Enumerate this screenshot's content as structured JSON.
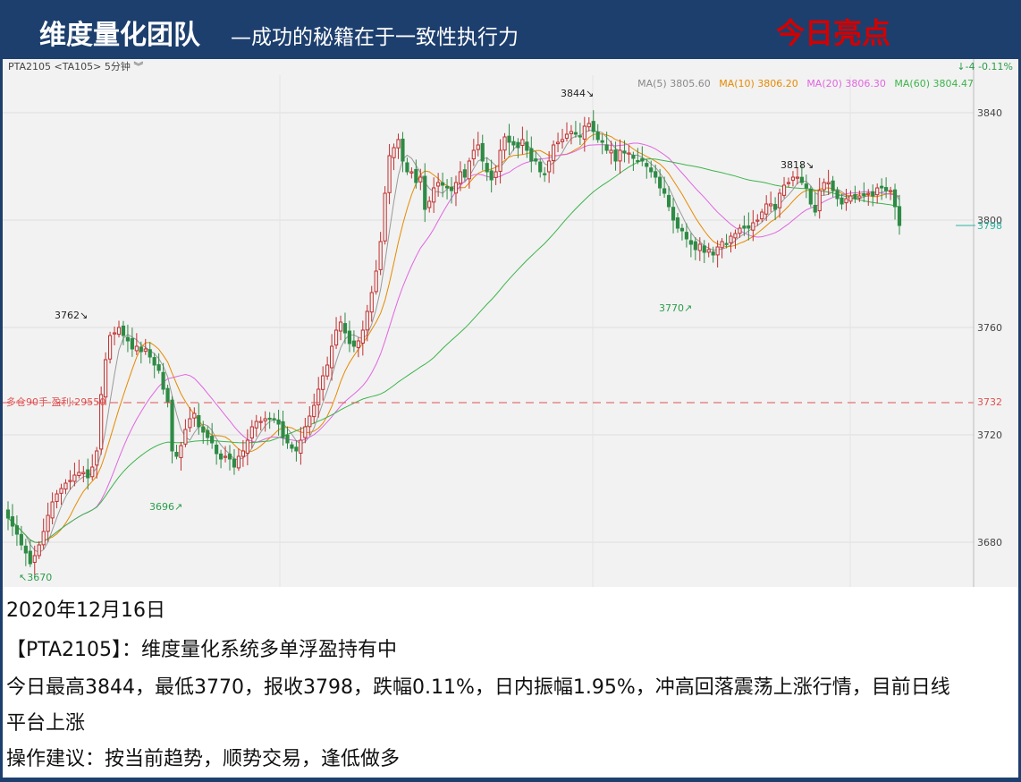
{
  "header": {
    "brand": "维度量化团队",
    "slogan": "—成功的秘籍在于一致性执行力",
    "highlight": "今日亮点"
  },
  "chart_header": {
    "symbol": "PTA2105 <TA105> 5分钟 ︾",
    "change": "↓-4 -0.11%",
    "ma_labels": [
      {
        "text": "MA(5) 3805.60",
        "color": "#888888"
      },
      {
        "text": "MA(10) 3806.20",
        "color": "#e68a00"
      },
      {
        "text": "MA(20) 3806.30",
        "color": "#e066e0"
      },
      {
        "text": "MA(60) 3804.47",
        "color": "#3cb44b"
      }
    ]
  },
  "annotations": {
    "high_3844": "3844↘",
    "peak_3762": "3762↘",
    "peak_3818": "3818↘",
    "low_3770": "3770↗",
    "low_3696": "3696↗",
    "low_3670": "↖3670",
    "position": "多仓90手 盈利:29550"
  },
  "price_tags": {
    "last": "3798",
    "position": "3732"
  },
  "info": {
    "date": "2020年12月16日",
    "status": "【PTA2105】：维度量化系统多单浮盈持有中",
    "summary_line1": "今日最高3844，最低3770，报收3798，跌幅0.11%，日内振幅1.95%，冲高回落震荡上涨行情，目前日线",
    "summary_line2": "平台上涨",
    "advice": "操作建议：按当前趋势，顺势交易，逢低做多"
  },
  "chart_data": {
    "type": "candlestick",
    "symbol": "PTA2105",
    "interval": "5分钟",
    "yaxis_ticks": [
      3680,
      3720,
      3760,
      3800,
      3840
    ],
    "ylim": [
      3668,
      3850
    ],
    "grid": true,
    "position_line": {
      "price": 3732,
      "label": "多仓90手 盈利:29550"
    },
    "last_price": 3798,
    "high": 3844,
    "low": 3770,
    "ma_legend": {
      "MA5": 3805.6,
      "MA10": 3806.2,
      "MA20": 3806.3,
      "MA60": 3804.47
    },
    "closes": [
      3689,
      3686,
      3683,
      3679,
      3676,
      3672,
      3675,
      3679,
      3684,
      3690,
      3695,
      3698,
      3700,
      3702,
      3703,
      3705,
      3706,
      3706,
      3704,
      3708,
      3714,
      3735,
      3748,
      3757,
      3758,
      3760,
      3757,
      3755,
      3752,
      3753,
      3751,
      3752,
      3749,
      3746,
      3744,
      3737,
      3732,
      3714,
      3712,
      3716,
      3722,
      3726,
      3728,
      3723,
      3721,
      3719,
      3717,
      3713,
      3711,
      3712,
      3711,
      3708,
      3712,
      3714,
      3718,
      3723,
      3725,
      3725,
      3726,
      3726,
      3726,
      3724,
      3719,
      3717,
      3715,
      3714,
      3718,
      3723,
      3727,
      3731,
      3737,
      3742,
      3746,
      3753,
      3759,
      3762,
      3758,
      3754,
      3753,
      3755,
      3759,
      3766,
      3773,
      3781,
      3792,
      3810,
      3824,
      3827,
      3830,
      3822,
      3818,
      3818,
      3814,
      3816,
      3804,
      3807,
      3812,
      3814,
      3813,
      3812,
      3811,
      3814,
      3818,
      3816,
      3822,
      3826,
      3828,
      3822,
      3818,
      3815,
      3818,
      3826,
      3831,
      3829,
      3828,
      3827,
      3830,
      3826,
      3822,
      3822,
      3818,
      3817,
      3822,
      3828,
      3829,
      3830,
      3832,
      3833,
      3832,
      3831,
      3835,
      3836,
      3833,
      3830,
      3829,
      3826,
      3826,
      3822,
      3826,
      3825,
      3825,
      3823,
      3822,
      3822,
      3820,
      3818,
      3816,
      3812,
      3810,
      3805,
      3800,
      3797,
      3796,
      3793,
      3791,
      3789,
      3791,
      3788,
      3789,
      3787,
      3790,
      3792,
      3791,
      3794,
      3795,
      3797,
      3797,
      3797,
      3799,
      3800,
      3803,
      3806,
      3806,
      3804,
      3810,
      3813,
      3814,
      3816,
      3816,
      3814,
      3812,
      3806,
      3803,
      3811,
      3814,
      3814,
      3811,
      3808,
      3806,
      3808,
      3809,
      3808,
      3809,
      3809,
      3810,
      3809,
      3812,
      3812,
      3811,
      3811,
      3805,
      3798
    ]
  }
}
